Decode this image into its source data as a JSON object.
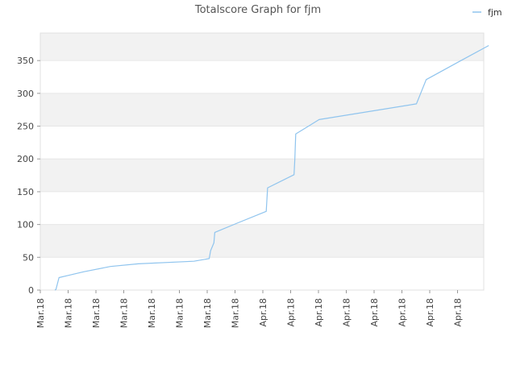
{
  "chart_data": {
    "type": "line",
    "title": "Totalscore Graph for fjm",
    "xlabel": "",
    "ylabel": "",
    "ylim": [
      0,
      392
    ],
    "y_ticks": [
      0,
      50,
      100,
      150,
      200,
      250,
      300,
      350
    ],
    "x_tick_labels": [
      "Mar.18",
      "Mar.18",
      "Mar.18",
      "Mar.18",
      "Mar.18",
      "Mar.18",
      "Mar.18",
      "Mar.18",
      "Apr.18",
      "Apr.18",
      "Apr.18",
      "Apr.18",
      "Apr.18",
      "Apr.18",
      "Apr.18",
      "Apr.18"
    ],
    "legend_position": "top-right",
    "grid": true,
    "line_color": "#8fc4ee",
    "band_color": "#f2f2f2",
    "series": [
      {
        "name": "fjm",
        "x": [
          0.0,
          0.04,
          0.15,
          0.45,
          1.05,
          2.0,
          3.0,
          5.0,
          5.55,
          5.6,
          5.65,
          5.72,
          5.75,
          6.55,
          7.6,
          7.65,
          8.6,
          8.63,
          8.66,
          9.5,
          13.0,
          13.35,
          14.6,
          15.6
        ],
        "y": [
          0,
          1,
          19,
          22,
          28,
          36,
          40,
          44,
          48,
          60,
          65,
          72,
          88,
          102,
          120,
          156,
          176,
          200,
          238,
          260,
          284,
          321,
          350,
          373
        ]
      }
    ]
  }
}
